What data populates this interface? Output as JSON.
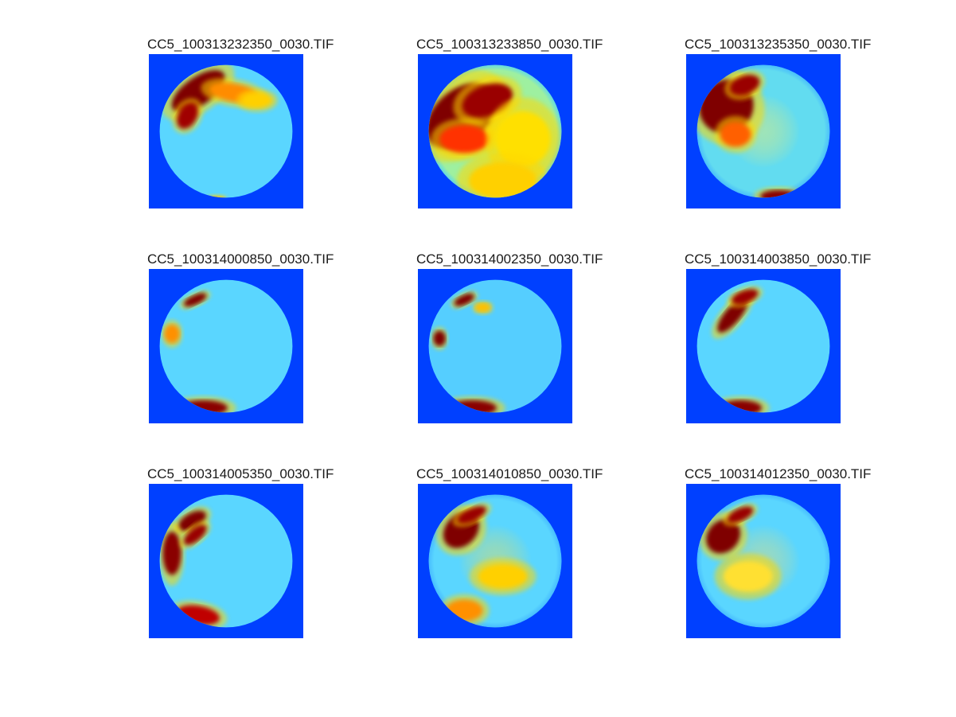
{
  "figure": {
    "panels": [
      {
        "title": "CC5_100313232350_0030.TIF",
        "spots": [
          [
            0.32,
            0.24,
            0.2,
            0.09,
            -35,
            "#7f0000"
          ],
          [
            0.25,
            0.4,
            0.09,
            0.06,
            -60,
            "#a00000"
          ],
          [
            0.55,
            0.25,
            0.16,
            0.06,
            10,
            "#ff8c00"
          ],
          [
            0.7,
            0.3,
            0.1,
            0.05,
            0,
            "#ffd000"
          ],
          [
            0.44,
            0.94,
            0.05,
            0.02,
            0,
            "#ffc000"
          ]
        ],
        "base": "#5ad6ff",
        "rim": "#3fb2ff",
        "glow": null
      },
      {
        "title": "CC5_100313233850_0030.TIF",
        "spots": [
          [
            0.28,
            0.4,
            0.26,
            0.17,
            -40,
            "#7f0000"
          ],
          [
            0.45,
            0.3,
            0.17,
            0.1,
            -20,
            "#9a0000"
          ],
          [
            0.3,
            0.55,
            0.16,
            0.09,
            0,
            "#ff3000"
          ],
          [
            0.68,
            0.55,
            0.18,
            0.18,
            0,
            "#ffe000"
          ],
          [
            0.55,
            0.82,
            0.22,
            0.12,
            0,
            "#ffd000"
          ]
        ],
        "base": "#9ef0a0",
        "rim": "#49d0ff",
        "glow": "#fff000"
      },
      {
        "title": "CC5_100313235350_0030.TIF",
        "spots": [
          [
            0.26,
            0.34,
            0.18,
            0.17,
            -40,
            "#7f0000"
          ],
          [
            0.38,
            0.2,
            0.1,
            0.06,
            -20,
            "#9a0000"
          ],
          [
            0.32,
            0.52,
            0.1,
            0.08,
            0,
            "#ff6000"
          ],
          [
            0.6,
            0.92,
            0.12,
            0.04,
            0,
            "#8a0000"
          ]
        ],
        "base": "#62dcf0",
        "rim": "#3fb2ff",
        "glow": "#fff060"
      },
      {
        "title": "CC5_100314000850_0030.TIF",
        "spots": [
          [
            0.3,
            0.2,
            0.08,
            0.03,
            -25,
            "#7f0000"
          ],
          [
            0.15,
            0.42,
            0.05,
            0.06,
            0,
            "#ff9000"
          ],
          [
            0.35,
            0.9,
            0.16,
            0.05,
            0,
            "#8a0000"
          ]
        ],
        "base": "#5ad6ff",
        "rim": "#3fb2ff",
        "glow": null
      },
      {
        "title": "CC5_100314002350_0030.TIF",
        "spots": [
          [
            0.3,
            0.2,
            0.07,
            0.03,
            -25,
            "#7f0000"
          ],
          [
            0.14,
            0.45,
            0.04,
            0.05,
            0,
            "#7f0000"
          ],
          [
            0.35,
            0.9,
            0.16,
            0.05,
            0,
            "#8a0000"
          ],
          [
            0.42,
            0.25,
            0.05,
            0.03,
            0,
            "#ffc000"
          ]
        ],
        "base": "#55ceff",
        "rim": "#3fb2ff",
        "glow": null
      },
      {
        "title": "CC5_100314003850_0030.TIF",
        "spots": [
          [
            0.3,
            0.3,
            0.14,
            0.05,
            -50,
            "#7f0000"
          ],
          [
            0.38,
            0.18,
            0.09,
            0.04,
            -20,
            "#9a0000"
          ],
          [
            0.35,
            0.9,
            0.14,
            0.05,
            0,
            "#8a0000"
          ]
        ],
        "base": "#5ad6ff",
        "rim": "#3fb2ff",
        "glow": null
      },
      {
        "title": "CC5_100314005350_0030.TIF",
        "spots": [
          [
            0.28,
            0.24,
            0.1,
            0.05,
            -30,
            "#7f0000"
          ],
          [
            0.15,
            0.45,
            0.06,
            0.14,
            0,
            "#8a0000"
          ],
          [
            0.3,
            0.33,
            0.09,
            0.04,
            -40,
            "#9a0000"
          ],
          [
            0.32,
            0.85,
            0.14,
            0.06,
            10,
            "#c00000"
          ]
        ],
        "base": "#5ad6ff",
        "rim": "#3fb2ff",
        "glow": null
      },
      {
        "title": "CC5_100314010850_0030.TIF",
        "spots": [
          [
            0.28,
            0.3,
            0.13,
            0.1,
            -45,
            "#7f0000"
          ],
          [
            0.35,
            0.2,
            0.1,
            0.04,
            -25,
            "#9a0000"
          ],
          [
            0.3,
            0.82,
            0.12,
            0.07,
            0,
            "#ff9000"
          ],
          [
            0.55,
            0.6,
            0.16,
            0.08,
            0,
            "#ffd000"
          ]
        ],
        "base": "#5ad6ff",
        "rim": "#3fb2ff",
        "glow": "#ffe040"
      },
      {
        "title": "CC5_100314012350_0030.TIF",
        "spots": [
          [
            0.24,
            0.34,
            0.12,
            0.1,
            -45,
            "#7f0000"
          ],
          [
            0.35,
            0.2,
            0.09,
            0.04,
            -25,
            "#9a0000"
          ],
          [
            0.4,
            0.6,
            0.16,
            0.1,
            0,
            "#ffe030"
          ]
        ],
        "base": "#5ad6ff",
        "rim": "#3fb2ff",
        "glow": "#ffe060"
      }
    ],
    "colors": {
      "background": "#ffffff",
      "image_field": "#0040ff",
      "title_text": "#1a1a1a"
    }
  }
}
